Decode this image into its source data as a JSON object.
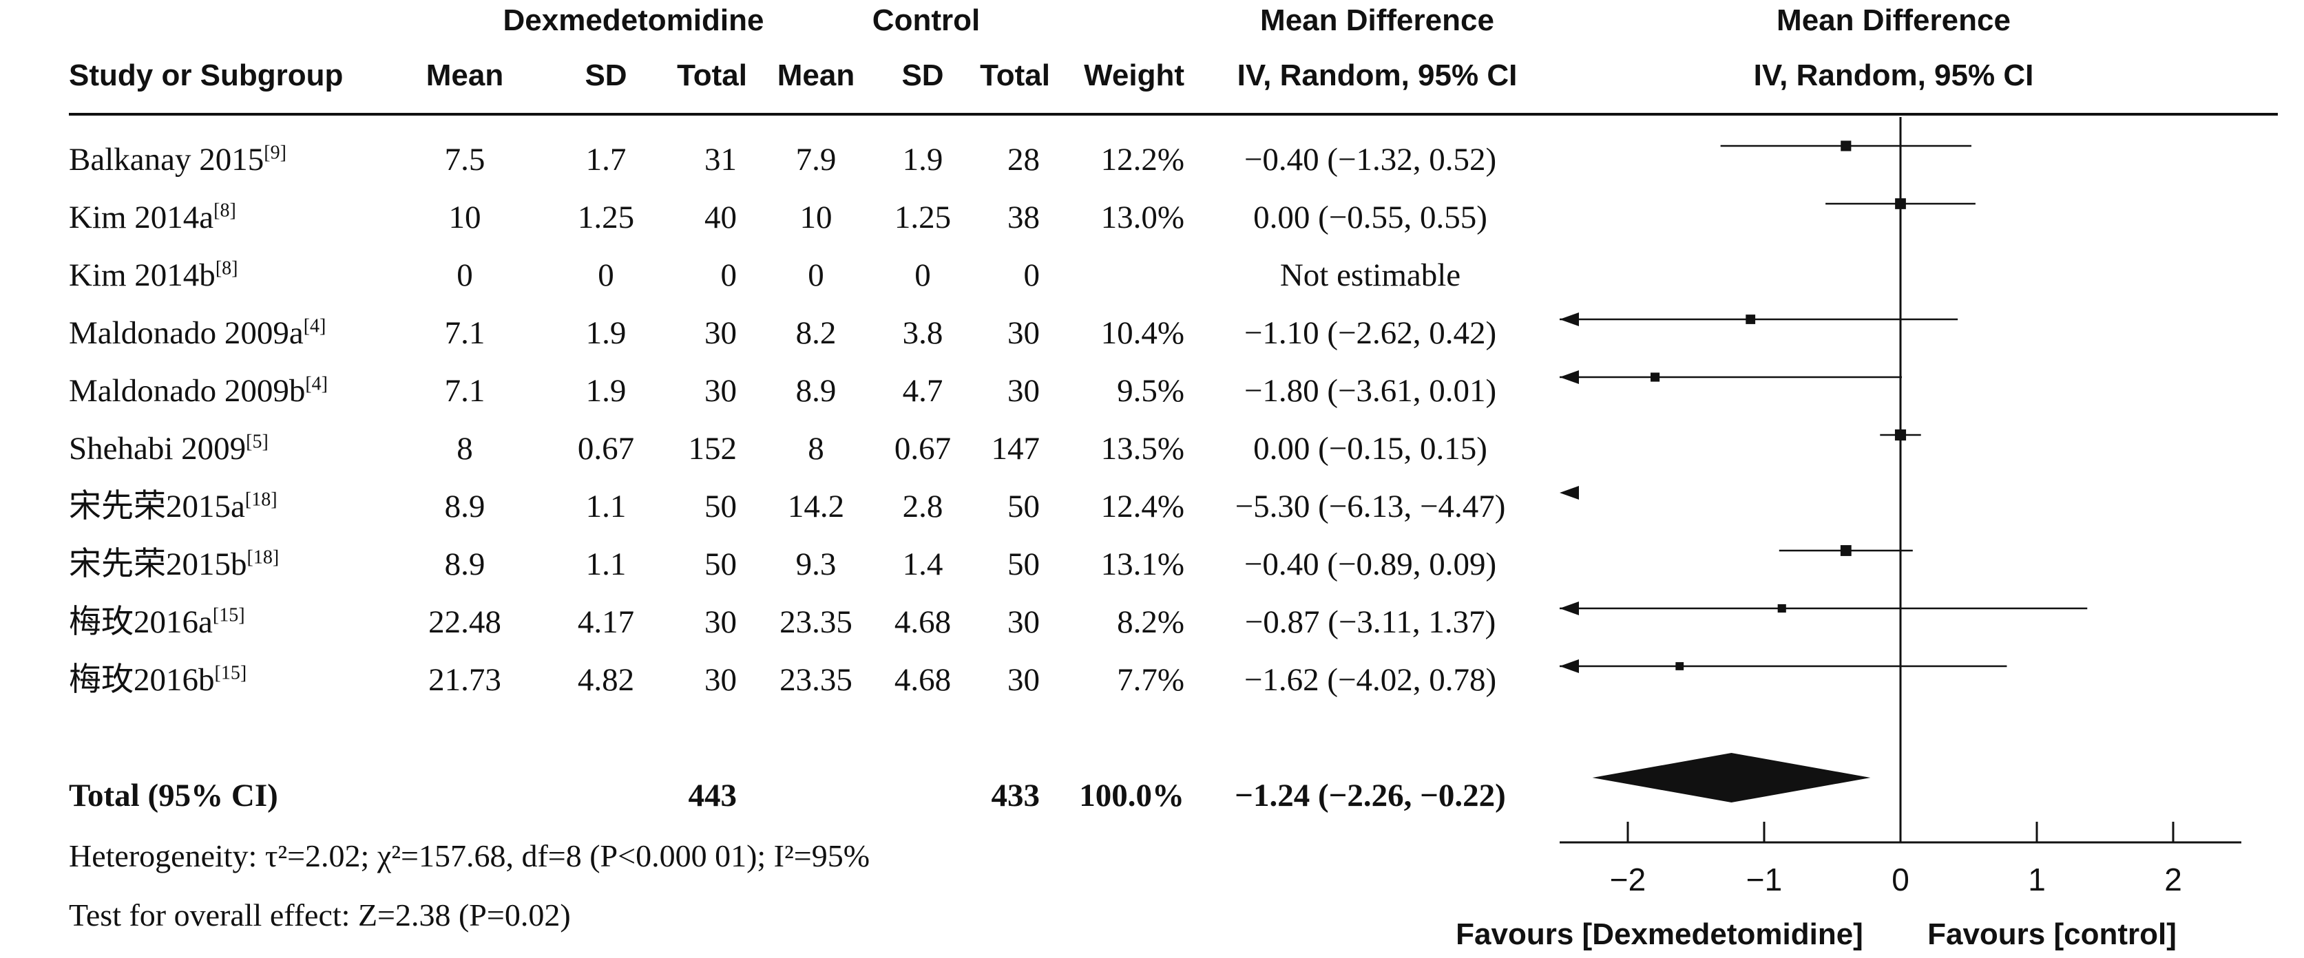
{
  "header": {
    "group_treatment": "Dexmedetomidine",
    "group_control": "Control",
    "effect_title": "Mean Difference",
    "effect_method": "IV, Random, 95% CI",
    "plot_title": "Mean Difference",
    "plot_method": "IV, Random, 95% CI",
    "col_study": "Study or Subgroup",
    "col_mean_t": "Mean",
    "col_sd_t": "SD",
    "col_total_t": "Total",
    "col_mean_c": "Mean",
    "col_sd_c": "SD",
    "col_total_c": "Total",
    "col_weight": "Weight"
  },
  "studies": [
    {
      "name": "Balkanay 2015",
      "ref": "[9]",
      "mean_t": "7.5",
      "sd_t": "1.7",
      "total_t": "31",
      "mean_c": "7.9",
      "sd_c": "1.9",
      "total_c": "28",
      "weight": "12.2%",
      "ci_text": "−0.40 (−1.32, 0.52)"
    },
    {
      "name": "Kim 2014a",
      "ref": "[8]",
      "mean_t": "10",
      "sd_t": "1.25",
      "total_t": "40",
      "mean_c": "10",
      "sd_c": "1.25",
      "total_c": "38",
      "weight": "13.0%",
      "ci_text": "0.00 (−0.55, 0.55)"
    },
    {
      "name": "Kim 2014b",
      "ref": "[8]",
      "mean_t": "0",
      "sd_t": "0",
      "total_t": "0",
      "mean_c": "0",
      "sd_c": "0",
      "total_c": "0",
      "weight": "",
      "ci_text": "Not estimable"
    },
    {
      "name": "Maldonado 2009a",
      "ref": "[4]",
      "mean_t": "7.1",
      "sd_t": "1.9",
      "total_t": "30",
      "mean_c": "8.2",
      "sd_c": "3.8",
      "total_c": "30",
      "weight": "10.4%",
      "ci_text": "−1.10 (−2.62, 0.42)"
    },
    {
      "name": "Maldonado 2009b",
      "ref": "[4]",
      "mean_t": "7.1",
      "sd_t": "1.9",
      "total_t": "30",
      "mean_c": "8.9",
      "sd_c": "4.7",
      "total_c": "30",
      "weight": "9.5%",
      "ci_text": "−1.80 (−3.61, 0.01)"
    },
    {
      "name": "Shehabi 2009",
      "ref": "[5]",
      "mean_t": "8",
      "sd_t": "0.67",
      "total_t": "152",
      "mean_c": "8",
      "sd_c": "0.67",
      "total_c": "147",
      "weight": "13.5%",
      "ci_text": "0.00 (−0.15, 0.15)"
    },
    {
      "name": "宋先荣2015a",
      "ref": "[18]",
      "mean_t": "8.9",
      "sd_t": "1.1",
      "total_t": "50",
      "mean_c": "14.2",
      "sd_c": "2.8",
      "total_c": "50",
      "weight": "12.4%",
      "ci_text": "−5.30 (−6.13, −4.47)"
    },
    {
      "name": "宋先荣2015b",
      "ref": "[18]",
      "mean_t": "8.9",
      "sd_t": "1.1",
      "total_t": "50",
      "mean_c": "9.3",
      "sd_c": "1.4",
      "total_c": "50",
      "weight": "13.1%",
      "ci_text": "−0.40 (−0.89, 0.09)"
    },
    {
      "name": "梅玫2016a",
      "ref": "[15]",
      "mean_t": "22.48",
      "sd_t": "4.17",
      "total_t": "30",
      "mean_c": "23.35",
      "sd_c": "4.68",
      "total_c": "30",
      "weight": "8.2%",
      "ci_text": "−0.87 (−3.11, 1.37)"
    },
    {
      "name": "梅玫2016b",
      "ref": "[15]",
      "mean_t": "21.73",
      "sd_t": "4.82",
      "total_t": "30",
      "mean_c": "23.35",
      "sd_c": "4.68",
      "total_c": "30",
      "weight": "7.7%",
      "ci_text": "−1.62 (−4.02, 0.78)"
    }
  ],
  "total": {
    "label": "Total (95% CI)",
    "total_t": "443",
    "total_c": "433",
    "weight": "100.0%",
    "ci_text": "−1.24 (−2.26, −0.22)"
  },
  "footer": {
    "heterogeneity": "Heterogeneity: τ²=2.02; χ²=157.68, df=8 (P<0.000 01); I²=95%",
    "overall_effect": "Test for overall effect: Z=2.38 (P=0.02)"
  },
  "axis": {
    "favours_left": "Favours [Dexmedetomidine]",
    "favours_right": "Favours [control]"
  },
  "chart_data": {
    "type": "forest",
    "title": "Mean Difference",
    "subtitle": "IV, Random, 95% CI",
    "xlim": [
      -2.5,
      2.5
    ],
    "xticks": [
      -2,
      -1,
      0,
      1,
      2
    ],
    "xtick_labels": [
      "−2",
      "−1",
      "0",
      "1",
      "2"
    ],
    "null_line": 0,
    "points": [
      {
        "study": "Balkanay 2015",
        "md": -0.4,
        "lo": -1.32,
        "hi": 0.52,
        "weight": 12.2
      },
      {
        "study": "Kim 2014a",
        "md": 0.0,
        "lo": -0.55,
        "hi": 0.55,
        "weight": 13.0
      },
      {
        "study": "Kim 2014b",
        "md": null,
        "lo": null,
        "hi": null,
        "weight": null
      },
      {
        "study": "Maldonado 2009a",
        "md": -1.1,
        "lo": -2.62,
        "hi": 0.42,
        "weight": 10.4
      },
      {
        "study": "Maldonado 2009b",
        "md": -1.8,
        "lo": -3.61,
        "hi": 0.01,
        "weight": 9.5
      },
      {
        "study": "Shehabi 2009",
        "md": 0.0,
        "lo": -0.15,
        "hi": 0.15,
        "weight": 13.5
      },
      {
        "study": "宋先荣2015a",
        "md": -5.3,
        "lo": -6.13,
        "hi": -4.47,
        "weight": 12.4
      },
      {
        "study": "宋先荣2015b",
        "md": -0.4,
        "lo": -0.89,
        "hi": 0.09,
        "weight": 13.1
      },
      {
        "study": "梅玫2016a",
        "md": -0.87,
        "lo": -3.11,
        "hi": 1.37,
        "weight": 8.2
      },
      {
        "study": "梅玫2016b",
        "md": -1.62,
        "lo": -4.02,
        "hi": 0.78,
        "weight": 7.7
      }
    ],
    "pooled": {
      "md": -1.24,
      "lo": -2.26,
      "hi": -0.22,
      "weight": 100.0
    }
  }
}
